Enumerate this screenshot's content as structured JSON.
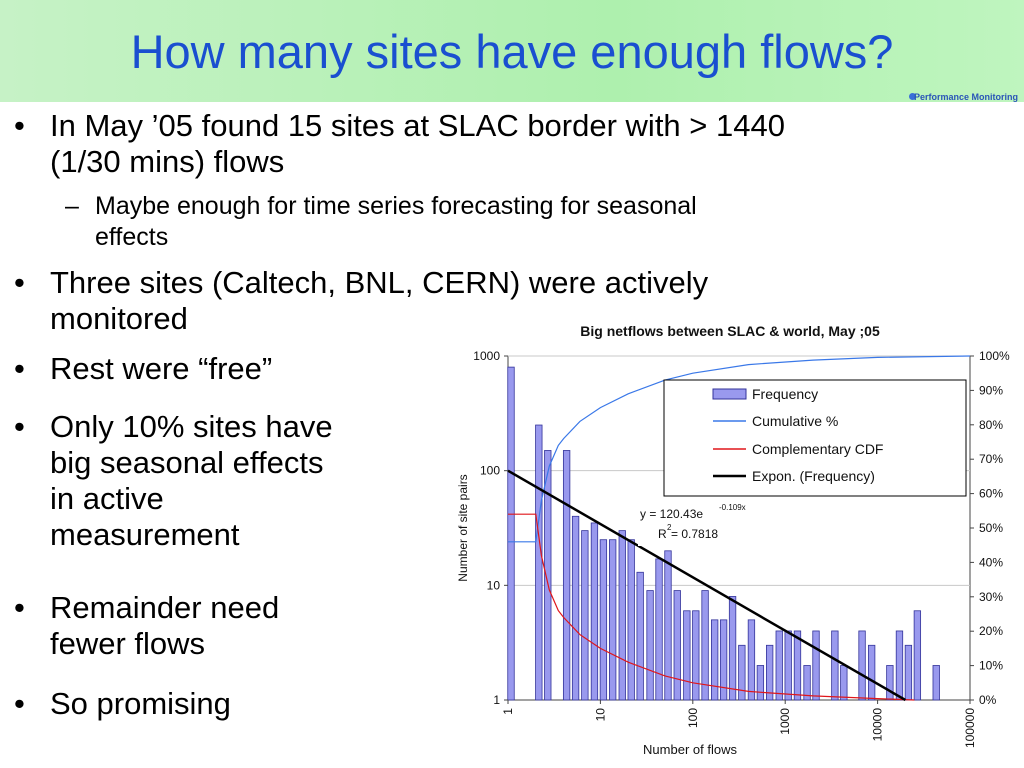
{
  "slide": {
    "title": "How many sites have enough flows?",
    "logo_text": "Performance Monitoring",
    "bullets": [
      {
        "lines": [
          "In May ’05 found 15 sites at SLAC border with > 1440",
          "(1/30 mins) flows"
        ]
      },
      {
        "lines": [
          "Maybe enough for time series forecasting for seasonal",
          "effects"
        ]
      },
      {
        "lines": [
          "Three sites (Caltech, BNL, CERN) were actively",
          "monitored"
        ]
      },
      {
        "lines": [
          "Rest were “free”"
        ]
      },
      {
        "lines": [
          "Only 10% sites have",
          "big seasonal effects",
          "in active",
          "measurement"
        ]
      },
      {
        "lines": [
          "Remainder need",
          "fewer flows"
        ]
      },
      {
        "lines": [
          "So promising"
        ]
      }
    ],
    "bullet_symbol": "•",
    "sub_symbol": "–"
  },
  "chart_data": {
    "type": "bar",
    "title": "Big netflows between SLAC & world, May ;05",
    "xlabel": "Number of flows",
    "ylabel": "Number of site pairs",
    "x_scale": "log",
    "y_scale": "log",
    "xlim": [
      1,
      100000
    ],
    "ylim": [
      1,
      1000
    ],
    "x_ticks": [
      "1",
      "10",
      "100",
      "1000",
      "10000",
      "100000"
    ],
    "y_ticks": [
      "1",
      "10",
      "100",
      "1000"
    ],
    "y2_ticks": [
      "0%",
      "10%",
      "20%",
      "30%",
      "40%",
      "50%",
      "60%",
      "70%",
      "80%",
      "90%",
      "100%"
    ],
    "legend": [
      "Frequency",
      "Cumulative %",
      "Complementary CDF",
      "Expon. (Frequency)"
    ],
    "legend_position": "top-right",
    "colors": {
      "bar": "#9999ee",
      "bar_edge": "#33339a",
      "cumulative": "#3a78e8",
      "ccdf": "#e0161a",
      "fit": "#000000"
    },
    "annotation": {
      "equation": "y = 120.43e",
      "exponent": "-0.109x",
      "r2_label": "R",
      "r2_value": " = 0.7818"
    },
    "bins": [
      {
        "x": 1,
        "y": 800
      },
      {
        "x": 2,
        "y": 250
      },
      {
        "x": 2.5,
        "y": 150
      },
      {
        "x": 4,
        "y": 150
      },
      {
        "x": 5,
        "y": 40
      },
      {
        "x": 6.3,
        "y": 30
      },
      {
        "x": 8,
        "y": 35
      },
      {
        "x": 10,
        "y": 25
      },
      {
        "x": 12.6,
        "y": 25
      },
      {
        "x": 16,
        "y": 30
      },
      {
        "x": 20,
        "y": 25
      },
      {
        "x": 25,
        "y": 13
      },
      {
        "x": 32,
        "y": 9
      },
      {
        "x": 40,
        "y": 17
      },
      {
        "x": 50,
        "y": 20
      },
      {
        "x": 63,
        "y": 9
      },
      {
        "x": 80,
        "y": 6
      },
      {
        "x": 100,
        "y": 6
      },
      {
        "x": 126,
        "y": 9
      },
      {
        "x": 160,
        "y": 5
      },
      {
        "x": 200,
        "y": 5
      },
      {
        "x": 250,
        "y": 8
      },
      {
        "x": 315,
        "y": 3
      },
      {
        "x": 400,
        "y": 5
      },
      {
        "x": 500,
        "y": 2
      },
      {
        "x": 630,
        "y": 3
      },
      {
        "x": 800,
        "y": 4
      },
      {
        "x": 1000,
        "y": 4
      },
      {
        "x": 1260,
        "y": 4
      },
      {
        "x": 1600,
        "y": 2
      },
      {
        "x": 2000,
        "y": 4
      },
      {
        "x": 2500,
        "y": 1
      },
      {
        "x": 3200,
        "y": 4
      },
      {
        "x": 4000,
        "y": 2
      },
      {
        "x": 5000,
        "y": 1
      },
      {
        "x": 6300,
        "y": 4
      },
      {
        "x": 8000,
        "y": 3
      },
      {
        "x": 10000,
        "y": 1
      },
      {
        "x": 12600,
        "y": 2
      },
      {
        "x": 16000,
        "y": 4
      },
      {
        "x": 20000,
        "y": 3
      },
      {
        "x": 25000,
        "y": 6
      },
      {
        "x": 40000,
        "y": 2
      }
    ],
    "cumulative_pct": [
      {
        "x": 1,
        "y": 46
      },
      {
        "x": 2,
        "y": 46
      },
      {
        "x": 2.3,
        "y": 58
      },
      {
        "x": 2.8,
        "y": 68
      },
      {
        "x": 3.5,
        "y": 74
      },
      {
        "x": 4,
        "y": 76
      },
      {
        "x": 6,
        "y": 81
      },
      {
        "x": 10,
        "y": 85
      },
      {
        "x": 20,
        "y": 89
      },
      {
        "x": 50,
        "y": 93
      },
      {
        "x": 100,
        "y": 95
      },
      {
        "x": 400,
        "y": 97.5
      },
      {
        "x": 2000,
        "y": 98.8
      },
      {
        "x": 10000,
        "y": 99.6
      },
      {
        "x": 100000,
        "y": 100
      }
    ],
    "ccdf_pct": [
      {
        "x": 1,
        "y": 54
      },
      {
        "x": 2,
        "y": 54
      },
      {
        "x": 2.3,
        "y": 42
      },
      {
        "x": 2.8,
        "y": 32
      },
      {
        "x": 3.5,
        "y": 26
      },
      {
        "x": 4,
        "y": 24
      },
      {
        "x": 6,
        "y": 19
      },
      {
        "x": 10,
        "y": 15
      },
      {
        "x": 20,
        "y": 11
      },
      {
        "x": 50,
        "y": 7
      },
      {
        "x": 100,
        "y": 5
      },
      {
        "x": 400,
        "y": 2.5
      },
      {
        "x": 2000,
        "y": 1.2
      },
      {
        "x": 10000,
        "y": 0.4
      },
      {
        "x": 25000,
        "y": 0
      }
    ],
    "fit_line": [
      {
        "x": 1,
        "y": 100
      },
      {
        "x": 20000,
        "y": 1
      }
    ]
  }
}
